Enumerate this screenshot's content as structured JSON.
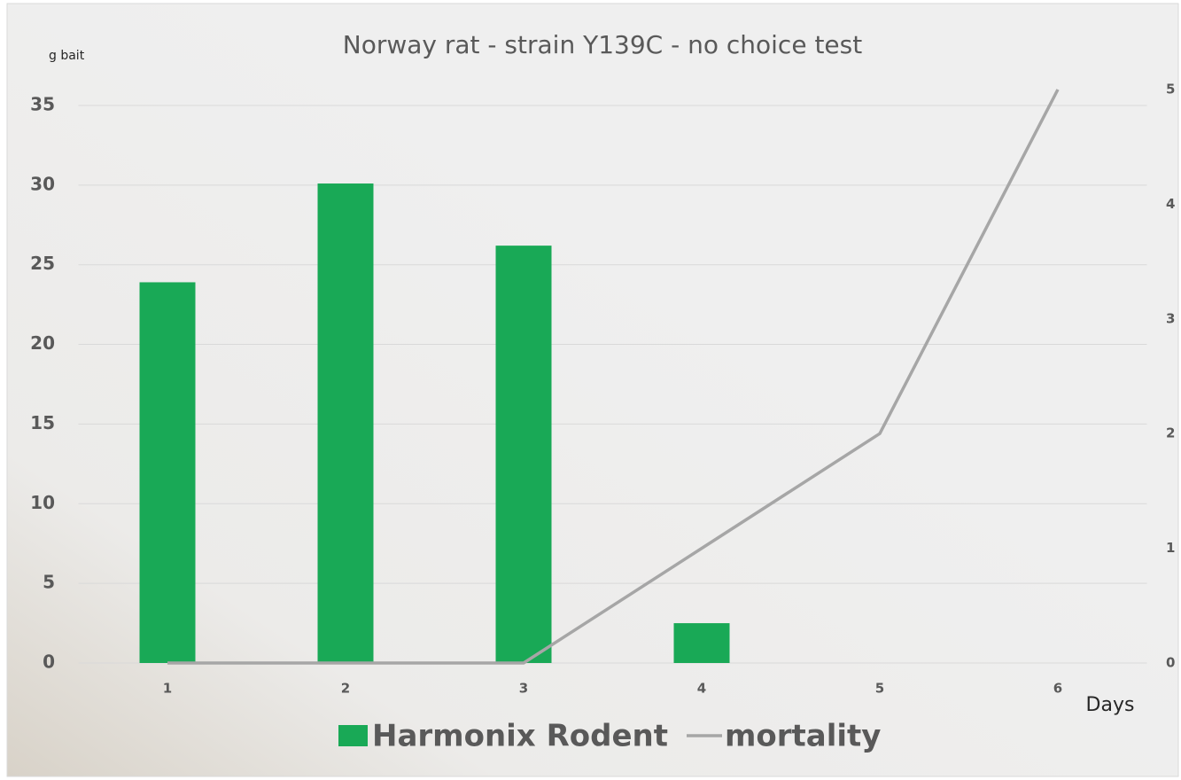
{
  "chart_data": {
    "type": "bar-line",
    "title": "Norway rat - strain Y139C - no choice test",
    "y_label": "g bait",
    "x_label": "Days",
    "categories": [
      "1",
      "2",
      "3",
      "4",
      "5",
      "6"
    ],
    "series": [
      {
        "name": "Harmonix Rodent",
        "type": "bar",
        "color": "#19a956",
        "values": [
          23.9,
          30.1,
          26.2,
          2.5,
          null,
          null
        ]
      },
      {
        "name": "mortality",
        "type": "line",
        "color": "#a6a6a6",
        "axis": "y2",
        "values": [
          0,
          0,
          0,
          1,
          2,
          5
        ]
      }
    ],
    "ylim": [
      0,
      36
    ],
    "yticks": [
      0,
      5,
      10,
      15,
      20,
      25,
      30,
      35
    ],
    "y2lim": [
      0,
      5
    ],
    "y2ticks": [
      0,
      1,
      2,
      3,
      4,
      5
    ],
    "grid": true,
    "legend": "bottom"
  }
}
